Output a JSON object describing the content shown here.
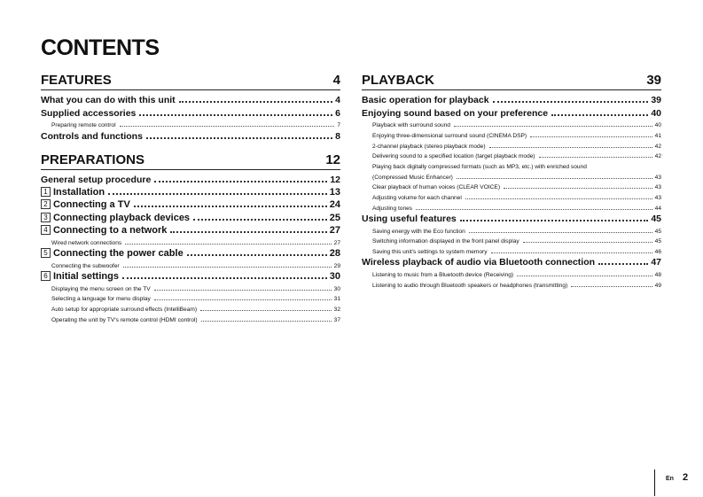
{
  "title": "CONTENTS",
  "left": [
    {
      "section": "FEATURES",
      "page": "4",
      "entries": [
        {
          "level": 1,
          "label": "What you can do with this unit",
          "page": "4"
        },
        {
          "level": 1,
          "label": "Supplied accessories",
          "page": "6"
        },
        {
          "level": 2,
          "label": "Preparing remote control",
          "page": "7"
        },
        {
          "level": 1,
          "label": "Controls and functions",
          "page": "8"
        }
      ]
    },
    {
      "section": "PREPARATIONS",
      "page": "12",
      "entries": [
        {
          "level": 1,
          "label": "General setup procedure",
          "page": "12"
        },
        {
          "level": 0,
          "num": "1",
          "label": "Installation",
          "page": "13"
        },
        {
          "level": 0,
          "num": "2",
          "label": "Connecting a TV",
          "page": "24"
        },
        {
          "level": 0,
          "num": "3",
          "label": "Connecting playback devices",
          "page": "25"
        },
        {
          "level": 0,
          "num": "4",
          "label": "Connecting to a network",
          "page": "27"
        },
        {
          "level": 2,
          "label": "Wired network connections",
          "page": "27"
        },
        {
          "level": 0,
          "num": "5",
          "label": "Connecting the power cable",
          "page": "28"
        },
        {
          "level": 2,
          "label": "Connecting the subwoofer",
          "page": "29"
        },
        {
          "level": 0,
          "num": "6",
          "label": "Initial settings",
          "page": "30"
        },
        {
          "level": 2,
          "label": "Displaying the menu screen on the TV",
          "page": "30"
        },
        {
          "level": 2,
          "label": "Selecting a language for menu display",
          "page": "31"
        },
        {
          "level": 2,
          "label": "Auto setup for appropriate surround effects (IntelliBeam)",
          "page": "32"
        },
        {
          "level": 2,
          "label": "Operating the unit by TV's remote control (HDMI control)",
          "page": "37"
        }
      ]
    }
  ],
  "right": [
    {
      "section": "PLAYBACK",
      "page": "39",
      "entries": [
        {
          "level": 1,
          "label": "Basic operation for playback",
          "page": "39"
        },
        {
          "level": 1,
          "label": "Enjoying sound based on your preference",
          "page": "40"
        },
        {
          "level": 2,
          "label": "Playback with surround sound",
          "page": "40"
        },
        {
          "level": 2,
          "label": "Enjoying three-dimensional surround sound (CINEMA DSP)",
          "page": "41"
        },
        {
          "level": 2,
          "label": "2-channel playback (stereo playback mode)",
          "page": "42"
        },
        {
          "level": 2,
          "label": "Delivering sound to a specified location (target playback mode)",
          "page": "42"
        },
        {
          "level": 2,
          "label": "Playing back digitally compressed formats (such as MP3, etc.) with enriched sound",
          "page": ""
        },
        {
          "level": 2,
          "label": "(Compressed Music Enhancer)",
          "page": "43"
        },
        {
          "level": 2,
          "label": "Clear playback of human voices (CLEAR VOICE)",
          "page": "43"
        },
        {
          "level": 2,
          "label": "Adjusting volume for each channel",
          "page": "43"
        },
        {
          "level": 2,
          "label": "Adjusting tones",
          "page": "44"
        },
        {
          "level": 1,
          "label": "Using useful features",
          "page": "45"
        },
        {
          "level": 2,
          "label": "Saving energy with the Eco function",
          "page": "45"
        },
        {
          "level": 2,
          "label": "Switching information displayed in the front panel display",
          "page": "45"
        },
        {
          "level": 2,
          "label": "Saving this unit's settings to system memory",
          "page": "46"
        },
        {
          "level": 1,
          "label": "Wireless playback of audio via Bluetooth connection",
          "page": "47"
        },
        {
          "level": 2,
          "label": "Listening to music from a Bluetooth device (Receiving)",
          "page": "48"
        },
        {
          "level": 2,
          "label": "Listening to audio through Bluetooth speakers or headphones (transmitting)",
          "page": "49"
        }
      ]
    }
  ],
  "footer": {
    "language": "En",
    "page_number": "2"
  }
}
